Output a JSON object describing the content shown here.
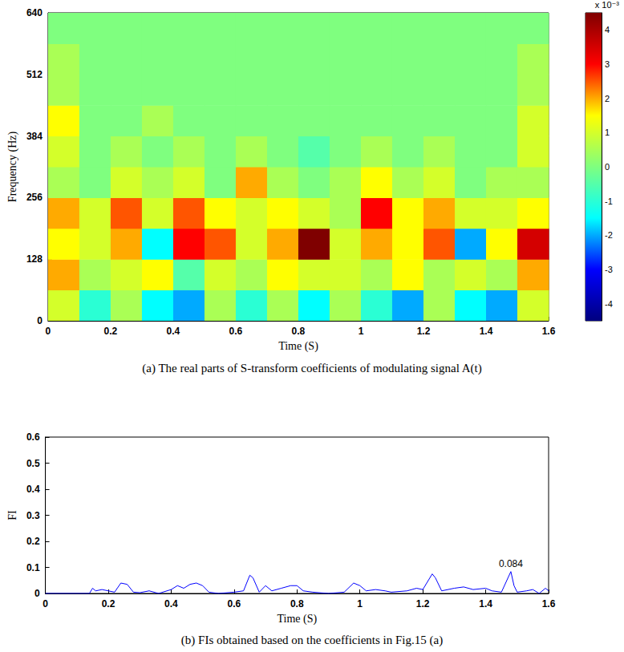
{
  "chart_data": [
    {
      "type": "heatmap",
      "title": "(a) The real parts of S-transform coefficients of modulating signal A(t)",
      "x_label": "Time (S)",
      "y_label": "Frequency (Hz)",
      "xlim": [
        0,
        1.6
      ],
      "xticks": [
        0,
        0.2,
        0.4,
        0.6,
        0.8,
        1.0,
        1.2,
        1.4,
        1.6
      ],
      "ylim": [
        0,
        640
      ],
      "yticks": [
        0,
        128,
        256,
        384,
        512,
        640
      ],
      "time_edges": [
        0,
        0.1,
        0.2,
        0.3,
        0.4,
        0.5,
        0.6,
        0.7,
        0.8,
        0.9,
        1.0,
        1.1,
        1.2,
        1.3,
        1.4,
        1.5,
        1.6
      ],
      "frequency_edges": [
        0,
        64,
        128,
        192,
        256,
        320,
        384,
        448,
        512,
        576,
        640
      ],
      "cells": [
        [
          1,
          -1,
          0.5,
          -1.5,
          -2,
          0.5,
          -1,
          0.5,
          -1.5,
          0.5,
          -1,
          -2,
          0.5,
          -1.5,
          -2,
          1
        ],
        [
          2,
          0.5,
          1,
          1.5,
          -0.5,
          1,
          0.5,
          1.5,
          1,
          1,
          0.5,
          1.5,
          0.5,
          1,
          0.5,
          2
        ],
        [
          1.5,
          1,
          2,
          -1.5,
          3,
          2.5,
          1,
          2,
          4.5,
          1,
          2,
          1.5,
          2.5,
          -2,
          1.5,
          3.5
        ],
        [
          2,
          1,
          2.5,
          1,
          2.5,
          1.5,
          1,
          1.5,
          1,
          0.5,
          3,
          1.5,
          2,
          1,
          1,
          1.5
        ],
        [
          0.5,
          0,
          1,
          0.5,
          1,
          0,
          2,
          0.5,
          0,
          0.5,
          1.5,
          0.5,
          1,
          0,
          0.5,
          0.5
        ],
        [
          1,
          0,
          0.5,
          0,
          0.5,
          0,
          0.5,
          0,
          -0.5,
          0,
          0.5,
          0,
          0.5,
          0,
          0,
          1
        ],
        [
          1.5,
          0,
          0,
          0.5,
          0,
          0,
          0,
          0,
          0,
          0,
          0,
          0,
          0,
          0,
          0,
          1
        ],
        [
          0.5,
          0,
          0,
          0,
          0,
          0,
          0,
          0,
          0,
          0,
          0,
          0,
          0,
          0,
          0,
          0.5
        ],
        [
          0.5,
          0,
          0,
          0,
          0,
          0,
          0,
          0,
          0,
          0,
          0,
          0,
          0,
          0,
          0,
          0.5
        ],
        [
          0,
          0,
          0,
          0,
          0,
          0,
          0,
          0,
          0,
          0,
          0,
          0,
          0,
          0,
          0,
          0
        ]
      ],
      "colorbar": {
        "range": [
          -4.5,
          4.5
        ],
        "ticks": [
          -4,
          -3,
          -2,
          -1,
          0,
          1,
          2,
          3,
          4
        ],
        "unit": "x 10⁻³",
        "colors": [
          "#00007f",
          "#0000ff",
          "#00ffff",
          "#7fff7f",
          "#ffff00",
          "#ff0000",
          "#7f0000"
        ]
      }
    },
    {
      "type": "line",
      "title": "(b) FIs obtained based on the coefficients in Fig.15 (a)",
      "x_label": "Time (S)",
      "y_label": "FI",
      "color": "#0000ff",
      "xlim": [
        0,
        1.6
      ],
      "xticks": [
        0,
        0.2,
        0.4,
        0.6,
        0.8,
        1.0,
        1.2,
        1.4,
        1.6
      ],
      "ylim": [
        0,
        0.6
      ],
      "yticks": [
        0,
        0.1,
        0.2,
        0.3,
        0.4,
        0.5,
        0.6
      ],
      "x": [
        0,
        0.14,
        0.15,
        0.16,
        0.18,
        0.2,
        0.22,
        0.24,
        0.26,
        0.28,
        0.3,
        0.33,
        0.36,
        0.4,
        0.42,
        0.44,
        0.46,
        0.48,
        0.5,
        0.52,
        0.55,
        0.6,
        0.63,
        0.65,
        0.66,
        0.68,
        0.7,
        0.72,
        0.75,
        0.78,
        0.8,
        0.82,
        0.85,
        0.9,
        0.95,
        0.98,
        1.0,
        1.02,
        1.05,
        1.08,
        1.1,
        1.15,
        1.18,
        1.2,
        1.23,
        1.24,
        1.26,
        1.3,
        1.33,
        1.36,
        1.4,
        1.42,
        1.45,
        1.48,
        1.49,
        1.5,
        1.53,
        1.55,
        1.57,
        1.59,
        1.6
      ],
      "values": [
        0,
        0,
        0.02,
        0.01,
        0.015,
        0.01,
        0.005,
        0.04,
        0.035,
        0.005,
        0.003,
        0.01,
        0,
        0.015,
        0.03,
        0.02,
        0.035,
        0.04,
        0.03,
        0.005,
        0,
        0.005,
        0.01,
        0.07,
        0.06,
        0.005,
        0.03,
        0.01,
        0.02,
        0.03,
        0.03,
        0.01,
        0.005,
        0,
        0.005,
        0.04,
        0.03,
        0.01,
        0.015,
        0.01,
        0.005,
        0.01,
        0.02,
        0.015,
        0.075,
        0.06,
        0.01,
        0.02,
        0.025,
        0.015,
        0.02,
        0.01,
        0.005,
        0.084,
        0.03,
        0.005,
        0.01,
        0.015,
        0,
        0.02,
        0.01
      ],
      "annotations": [
        {
          "text": "0.084",
          "x": 1.48,
          "y": 0.084
        }
      ]
    }
  ]
}
